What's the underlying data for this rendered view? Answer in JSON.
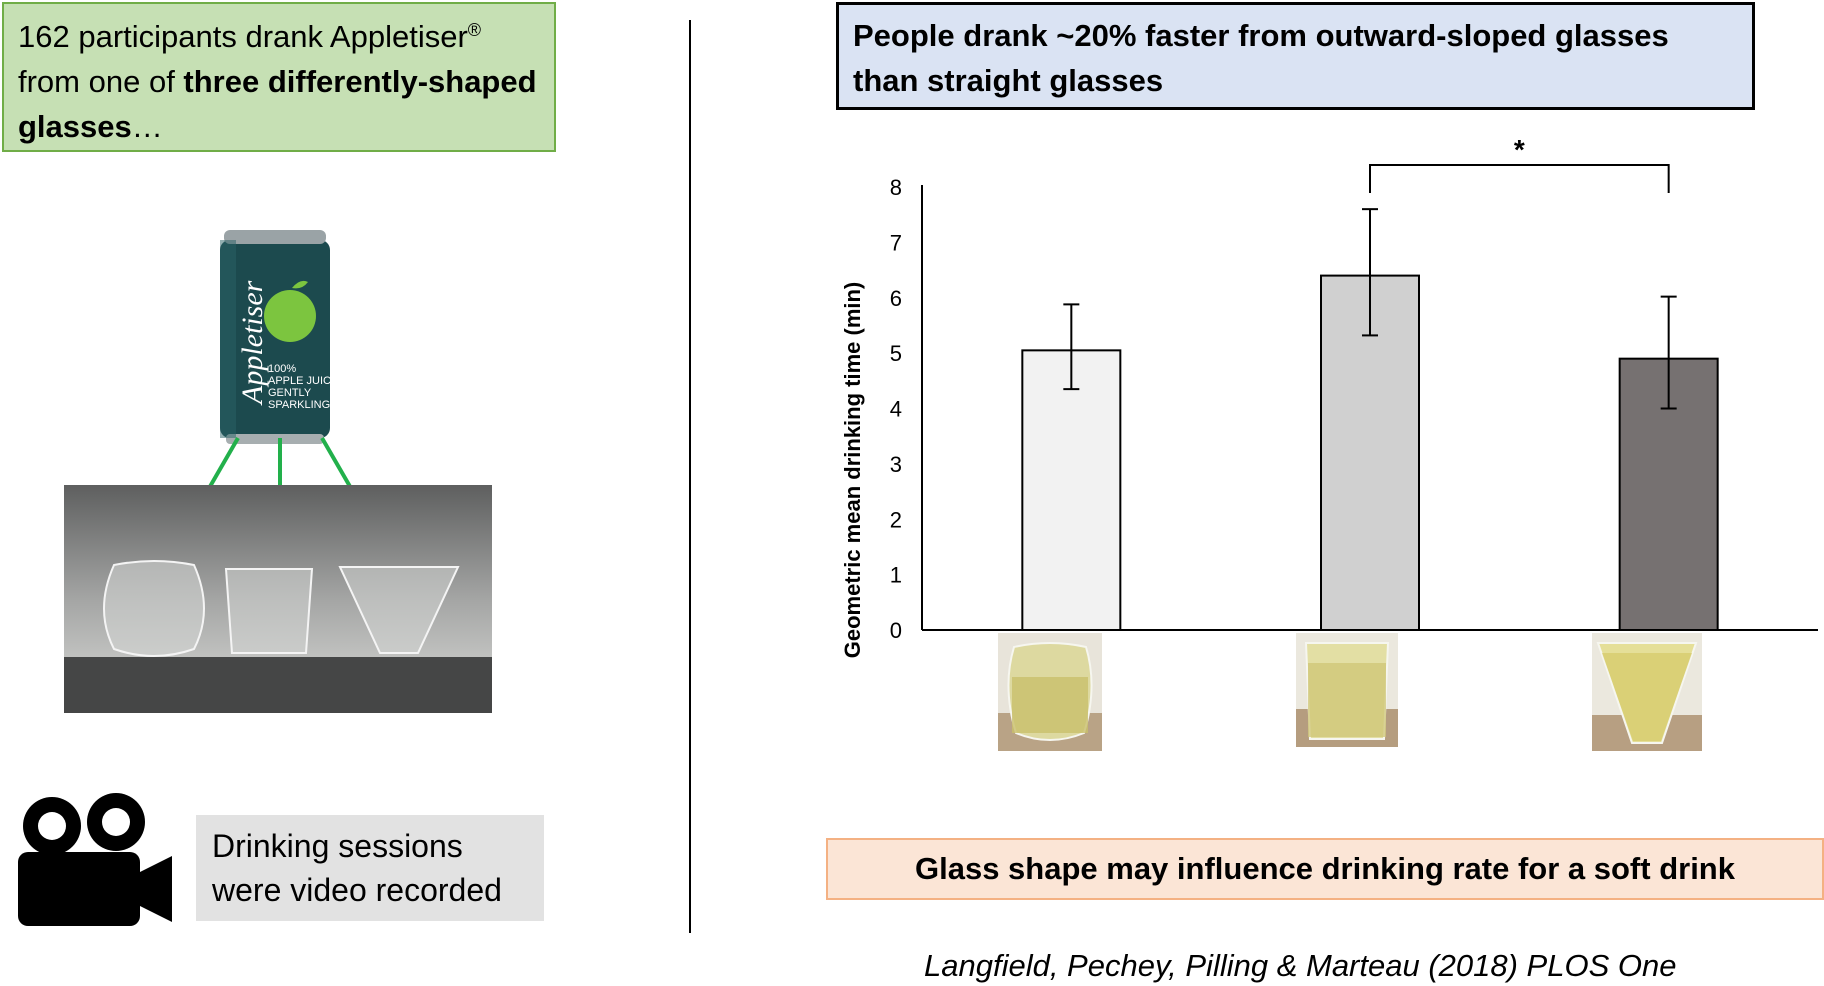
{
  "intro": {
    "part1": "162 participants drank Appletiser",
    "reg": "®",
    "part2": " from one of ",
    "bold": "three differently-shaped glasses",
    "part3": "…"
  },
  "can": {
    "brand": "Appletiser",
    "line1": "100%",
    "line2": "APPLE JUICE",
    "line3": "GENTLY",
    "line4": "SPARKLING"
  },
  "video_note": "Drinking sessions were video recorded",
  "headline": "People drank ~20% faster from outward-sloped glasses than straight glasses",
  "conclusion": "Glass shape may influence drinking rate for a soft drink",
  "citation": "Langfield, Pechey, Pilling & Marteau (2018) PLOS One",
  "colors": {
    "intro_bg": "#c6e0b4",
    "headline_bg": "#dae3f3",
    "conclusion_bg": "#fbe5d6",
    "arrow": "#22b04b",
    "can_body": "#1c4a4e",
    "apple": "#7cc53f"
  },
  "chart_data": {
    "type": "bar",
    "ylabel": "Geometric mean drinking time (min)",
    "xlabel": "",
    "ylim": [
      0,
      8
    ],
    "yticks": [
      0,
      1,
      2,
      3,
      4,
      5,
      6,
      7,
      8
    ],
    "categories": [
      "Curved glass",
      "Straight glass",
      "Outward-sloped glass"
    ],
    "values": [
      5.05,
      6.4,
      4.9
    ],
    "error_low": [
      4.35,
      5.32,
      4.0
    ],
    "error_high": [
      5.88,
      7.6,
      6.02
    ],
    "bar_colors": [
      "#f2f2f2",
      "#d0d0d0",
      "#767171"
    ],
    "significance": {
      "between": [
        1,
        2
      ],
      "label": "*"
    },
    "grid": false
  }
}
